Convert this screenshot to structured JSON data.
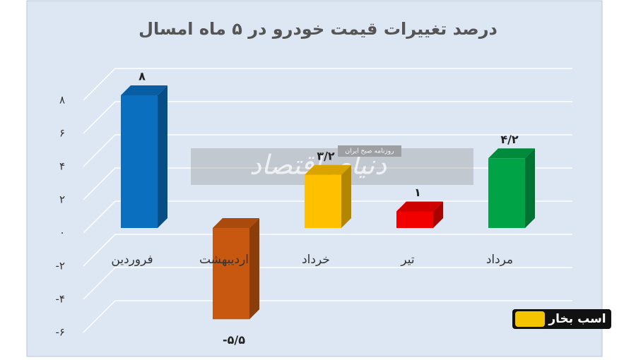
{
  "chart_data": {
    "type": "bar3d",
    "title": "درصد تغییرات قیمت خودرو در ۵ ماه امسال",
    "categories": [
      "فروردین",
      "اردیبهشت",
      "خرداد",
      "تیر",
      "مرداد"
    ],
    "values": [
      8,
      -5.5,
      3.2,
      1,
      4.2
    ],
    "value_labels": [
      "۸",
      "-۵/۵",
      "۳/۲",
      "۱",
      "۴/۲"
    ],
    "colors": [
      "#0b6fc0",
      "#c8580f",
      "#ffc000",
      "#f20000",
      "#00a447"
    ],
    "ylim": [
      -6,
      8
    ],
    "yticks": [
      {
        "value": 8,
        "label": "۸"
      },
      {
        "value": 6,
        "label": "۶"
      },
      {
        "value": 4,
        "label": "۴"
      },
      {
        "value": 2,
        "label": "۲"
      },
      {
        "value": 0,
        "label": "۰"
      },
      {
        "value": -2,
        "label": "-۲"
      },
      {
        "value": -4,
        "label": "-۴"
      },
      {
        "value": -6,
        "label": "-۶"
      }
    ],
    "grid": true,
    "watermark": {
      "main": "دنیای اقتصاد",
      "sub": "روزنامه صبح ایران"
    },
    "logo": "اسب بخار"
  }
}
